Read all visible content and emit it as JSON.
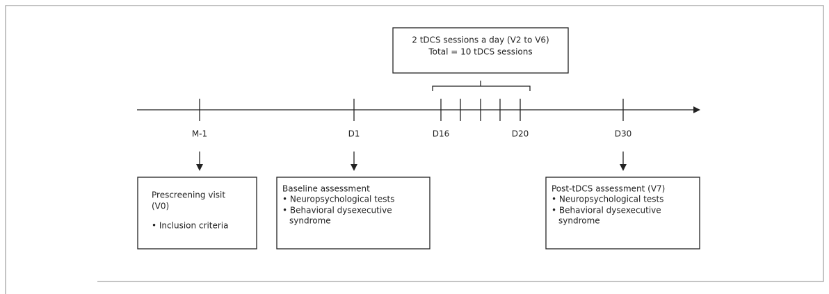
{
  "top_box": {
    "lines": [
      "2 tDCS sessions a day (V2 to V6)",
      "Total = 10 tDCS sessions"
    ]
  },
  "timeline": {
    "labels": [
      "M-1",
      "D1",
      "D16",
      "D20",
      "D30"
    ]
  },
  "boxes": [
    {
      "lines": [
        "Prescreening visit",
        "(V0)",
        "• Inclusion criteria"
      ]
    },
    {
      "lines": [
        "Baseline assessment",
        "• Neuropsychological tests",
        "• Behavioral dysexecutive",
        "syndrome"
      ]
    },
    {
      "lines": [
        "Post-tDCS assessment (V7)",
        "• Neuropsychological tests",
        "• Behavioral dysexecutive",
        "syndrome"
      ]
    }
  ]
}
